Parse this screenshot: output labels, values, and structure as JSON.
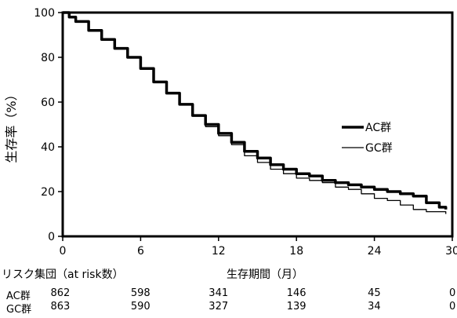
{
  "chart_data": {
    "type": "line",
    "title": "",
    "xlabel": "生存期間（月）",
    "ylabel": "生存率（%）",
    "xlim": [
      0,
      30
    ],
    "ylim": [
      0,
      100
    ],
    "xticks": [
      0,
      6,
      12,
      18,
      24,
      30
    ],
    "yticks": [
      0,
      20,
      40,
      60,
      80,
      100
    ],
    "grid": false,
    "legend_position": "right",
    "series": [
      {
        "name": "AC群",
        "style": "thick",
        "x": [
          0,
          0.5,
          1,
          2,
          3,
          4,
          5,
          6,
          7,
          8,
          9,
          10,
          11,
          12,
          13,
          14,
          15,
          16,
          17,
          18,
          19,
          20,
          21,
          22,
          23,
          24,
          25,
          26,
          27,
          28,
          29,
          29.5
        ],
        "y": [
          100,
          98,
          96,
          92,
          88,
          84,
          80,
          75,
          69,
          64,
          59,
          54,
          50,
          46,
          42,
          38,
          35,
          32,
          30,
          28,
          27,
          25,
          24,
          23,
          22,
          21,
          20,
          19,
          18,
          15,
          13,
          12
        ]
      },
      {
        "name": "GC群",
        "style": "thin",
        "x": [
          0,
          0.5,
          1,
          2,
          3,
          4,
          5,
          6,
          7,
          8,
          9,
          10,
          11,
          12,
          13,
          14,
          15,
          16,
          17,
          18,
          19,
          20,
          21,
          22,
          23,
          24,
          25,
          26,
          27,
          28,
          29,
          29.5
        ],
        "y": [
          100,
          98,
          96,
          92,
          88,
          84,
          80,
          75,
          69,
          64,
          59,
          54,
          49,
          45,
          41,
          36,
          33,
          30,
          28,
          26,
          25,
          24,
          22,
          21,
          19,
          17,
          16,
          14,
          12,
          11,
          11,
          10
        ]
      }
    ]
  },
  "risk_table": {
    "header": "リスク集団（at risk数）",
    "rows": [
      {
        "label": "AC群",
        "values": [
          "862",
          "598",
          "341",
          "146",
          "45",
          "0"
        ]
      },
      {
        "label": "GC群",
        "values": [
          "863",
          "590",
          "327",
          "139",
          "34",
          "0"
        ]
      }
    ]
  }
}
